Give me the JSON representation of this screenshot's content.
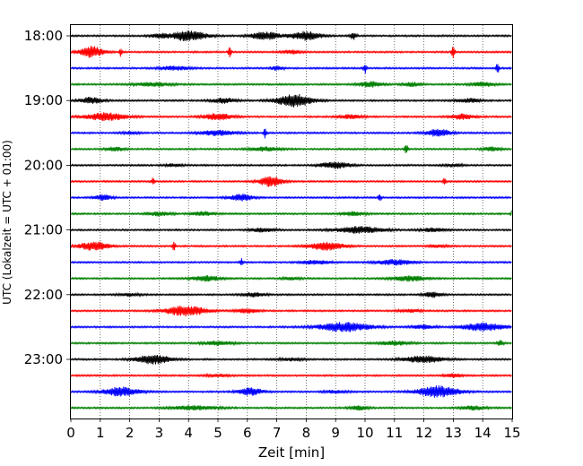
{
  "chart_data": {
    "type": "line",
    "xlabel": "Zeit  [min]",
    "ylabel": "UTC (Lokalzeit = UTC + 01:00)",
    "xlim": [
      0,
      15
    ],
    "x_ticks": [
      0,
      1,
      2,
      3,
      4,
      5,
      6,
      7,
      8,
      9,
      10,
      11,
      12,
      13,
      14,
      15
    ],
    "grid": "vertical dotted at each minute",
    "y_ticks": [
      {
        "row": 0,
        "label": "18:00"
      },
      {
        "row": 4,
        "label": "19:00"
      },
      {
        "row": 8,
        "label": "20:00"
      },
      {
        "row": 12,
        "label": "21:00"
      },
      {
        "row": 16,
        "label": "22:00"
      },
      {
        "row": 20,
        "label": "23:00"
      }
    ],
    "trace_colors": [
      "#000000",
      "#ff0000",
      "#0000ff",
      "#008000"
    ],
    "traces": [
      {
        "start": "18:00",
        "color": "#000000",
        "bursts": [
          [
            4.0,
            0.6,
            0.8
          ],
          [
            6.6,
            0.5,
            0.6
          ],
          [
            8.0,
            0.5,
            0.7
          ],
          [
            9.6,
            0.1,
            0.6
          ],
          [
            3.0,
            0.3,
            0.3
          ]
        ]
      },
      {
        "start": "18:15",
        "color": "#ff0000",
        "bursts": [
          [
            0.7,
            0.4,
            0.9
          ],
          [
            1.7,
            0.05,
            0.8
          ],
          [
            5.4,
            0.05,
            0.9
          ],
          [
            7.5,
            0.3,
            0.3
          ],
          [
            13.0,
            0.05,
            1.0
          ]
        ]
      },
      {
        "start": "18:30",
        "color": "#0000ff",
        "bursts": [
          [
            3.5,
            0.5,
            0.3
          ],
          [
            7.0,
            0.2,
            0.3
          ],
          [
            10.0,
            0.05,
            0.8
          ],
          [
            14.5,
            0.05,
            0.9
          ]
        ]
      },
      {
        "start": "18:45",
        "color": "#008000",
        "bursts": [
          [
            2.8,
            0.6,
            0.3
          ],
          [
            10.2,
            0.4,
            0.4
          ],
          [
            11.6,
            0.3,
            0.3
          ],
          [
            14.0,
            0.4,
            0.3
          ]
        ]
      },
      {
        "start": "19:00",
        "color": "#000000",
        "bursts": [
          [
            0.7,
            0.4,
            0.5
          ],
          [
            5.2,
            0.4,
            0.4
          ],
          [
            7.6,
            0.6,
            1.0
          ],
          [
            13.5,
            0.4,
            0.3
          ]
        ]
      },
      {
        "start": "19:15",
        "color": "#ff0000",
        "bursts": [
          [
            1.2,
            0.7,
            0.6
          ],
          [
            5.0,
            0.5,
            0.5
          ],
          [
            9.5,
            0.4,
            0.3
          ],
          [
            13.3,
            0.4,
            0.4
          ]
        ]
      },
      {
        "start": "19:30",
        "color": "#0000ff",
        "bursts": [
          [
            5.0,
            0.6,
            0.4
          ],
          [
            6.6,
            0.05,
            0.8
          ],
          [
            12.5,
            0.4,
            0.6
          ],
          [
            2.0,
            0.3,
            0.2
          ]
        ]
      },
      {
        "start": "19:45",
        "color": "#008000",
        "bursts": [
          [
            1.5,
            0.3,
            0.3
          ],
          [
            6.6,
            0.5,
            0.3
          ],
          [
            11.4,
            0.05,
            0.9
          ],
          [
            14.3,
            0.3,
            0.3
          ]
        ]
      },
      {
        "start": "20:00",
        "color": "#000000",
        "bursts": [
          [
            9.0,
            0.5,
            0.5
          ],
          [
            3.5,
            0.3,
            0.2
          ],
          [
            13.0,
            0.3,
            0.2
          ]
        ]
      },
      {
        "start": "20:15",
        "color": "#ff0000",
        "bursts": [
          [
            2.8,
            0.05,
            0.7
          ],
          [
            6.8,
            0.4,
            0.8
          ],
          [
            12.7,
            0.05,
            0.5
          ]
        ]
      },
      {
        "start": "20:30",
        "color": "#0000ff",
        "bursts": [
          [
            1.1,
            0.3,
            0.4
          ],
          [
            5.8,
            0.4,
            0.5
          ],
          [
            10.5,
            0.05,
            0.6
          ]
        ]
      },
      {
        "start": "20:45",
        "color": "#008000",
        "bursts": [
          [
            3.0,
            0.4,
            0.3
          ],
          [
            4.5,
            0.4,
            0.3
          ],
          [
            9.6,
            0.4,
            0.3
          ],
          [
            15.0,
            0.05,
            0.5
          ]
        ]
      },
      {
        "start": "21:00",
        "color": "#000000",
        "bursts": [
          [
            9.8,
            0.8,
            0.5
          ],
          [
            6.5,
            0.4,
            0.3
          ],
          [
            12.3,
            0.4,
            0.3
          ]
        ]
      },
      {
        "start": "21:15",
        "color": "#ff0000",
        "bursts": [
          [
            0.8,
            0.5,
            0.7
          ],
          [
            3.5,
            0.05,
            0.8
          ],
          [
            8.7,
            0.6,
            0.6
          ],
          [
            12.5,
            0.3,
            0.2
          ]
        ]
      },
      {
        "start": "21:30",
        "color": "#0000ff",
        "bursts": [
          [
            5.8,
            0.05,
            0.6
          ],
          [
            11.0,
            0.6,
            0.4
          ],
          [
            8.3,
            0.5,
            0.3
          ]
        ]
      },
      {
        "start": "21:45",
        "color": "#008000",
        "bursts": [
          [
            4.6,
            0.5,
            0.4
          ],
          [
            7.5,
            0.3,
            0.2
          ],
          [
            11.5,
            0.6,
            0.4
          ]
        ]
      },
      {
        "start": "22:00",
        "color": "#000000",
        "bursts": [
          [
            6.2,
            0.4,
            0.3
          ],
          [
            12.3,
            0.3,
            0.4
          ],
          [
            2.0,
            0.4,
            0.2
          ]
        ]
      },
      {
        "start": "22:15",
        "color": "#ff0000",
        "bursts": [
          [
            3.9,
            0.7,
            0.8
          ],
          [
            6.0,
            0.4,
            0.3
          ],
          [
            11.5,
            0.4,
            0.2
          ]
        ]
      },
      {
        "start": "22:30",
        "color": "#0000ff",
        "bursts": [
          [
            9.3,
            0.9,
            0.7
          ],
          [
            14.0,
            0.7,
            0.6
          ],
          [
            12.0,
            0.4,
            0.3
          ]
        ]
      },
      {
        "start": "22:45",
        "color": "#008000",
        "bursts": [
          [
            5.0,
            0.5,
            0.3
          ],
          [
            11.0,
            0.5,
            0.3
          ],
          [
            14.6,
            0.1,
            0.4
          ]
        ]
      },
      {
        "start": "23:00",
        "color": "#000000",
        "bursts": [
          [
            2.8,
            0.6,
            0.7
          ],
          [
            12.0,
            0.7,
            0.5
          ],
          [
            7.5,
            0.4,
            0.2
          ]
        ]
      },
      {
        "start": "23:15",
        "color": "#ff0000",
        "bursts": [
          [
            13.0,
            0.3,
            0.3
          ],
          [
            5.0,
            0.4,
            0.2
          ]
        ]
      },
      {
        "start": "23:30",
        "color": "#0000ff",
        "bursts": [
          [
            1.7,
            0.6,
            0.7
          ],
          [
            6.1,
            0.4,
            0.6
          ],
          [
            12.5,
            0.7,
            0.9
          ],
          [
            9.0,
            0.4,
            0.2
          ]
        ]
      },
      {
        "start": "23:45",
        "color": "#008000",
        "bursts": [
          [
            4.2,
            0.8,
            0.3
          ],
          [
            9.8,
            0.3,
            0.3
          ],
          [
            13.7,
            0.4,
            0.3
          ]
        ]
      }
    ]
  }
}
